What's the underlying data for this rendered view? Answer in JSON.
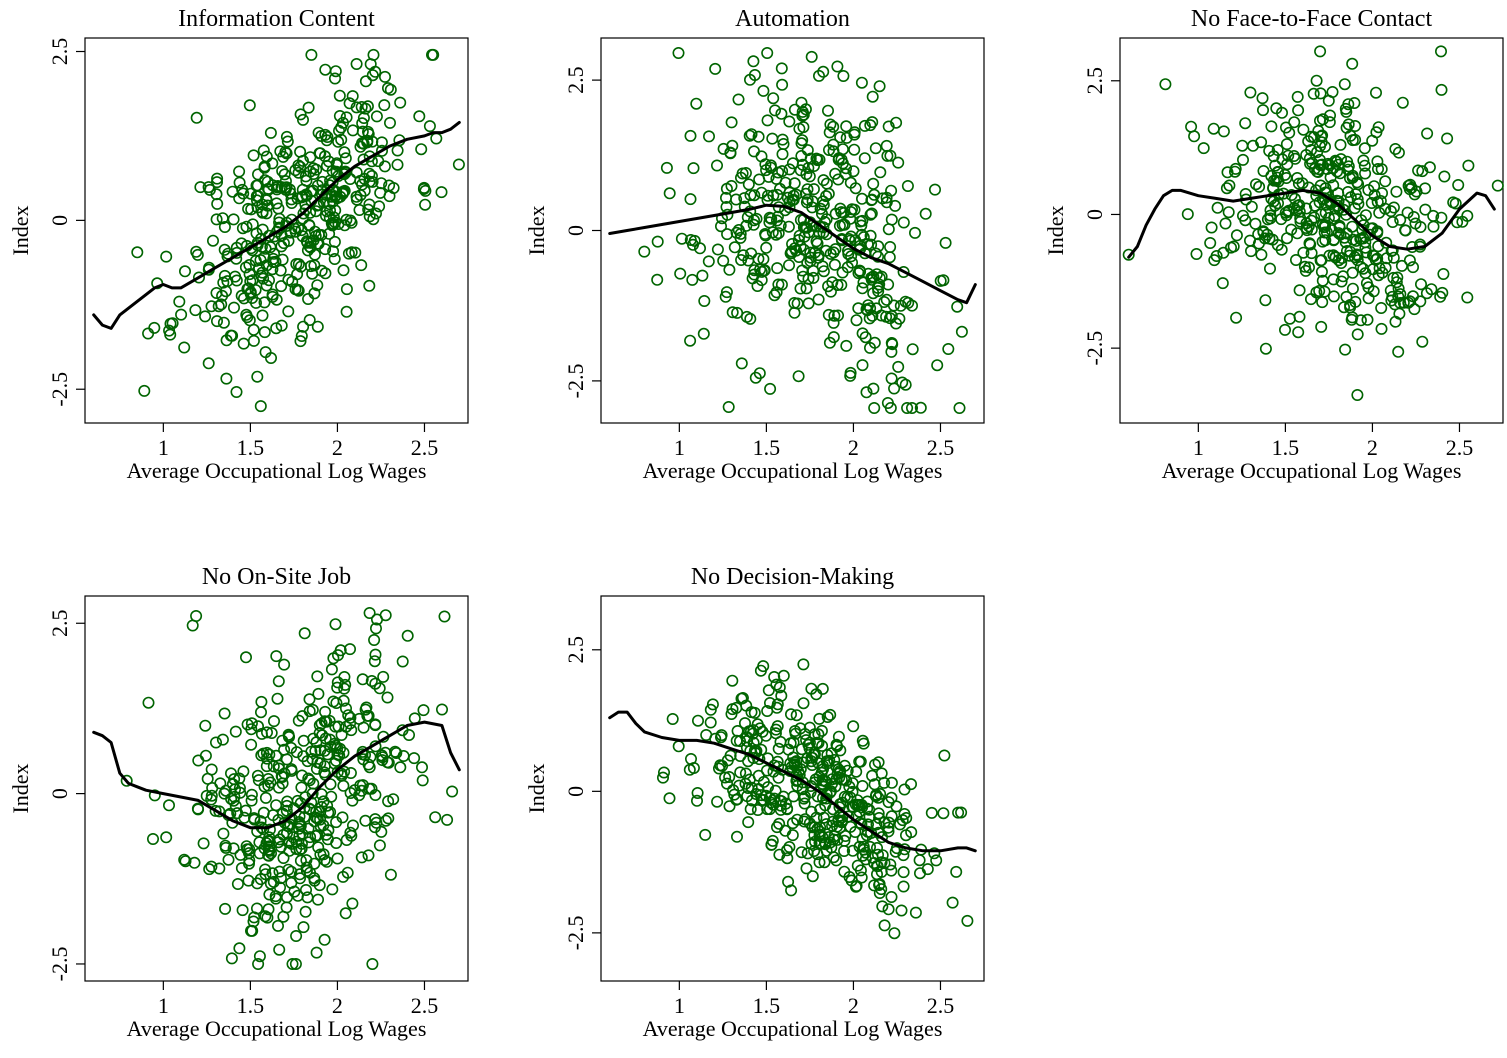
{
  "chart_data": [
    {
      "type": "scatter",
      "title": "Information Content",
      "xlabel": "Average Occupational Log Wages",
      "ylabel": "Index",
      "x_ticks": [
        "1",
        "1.5",
        "2",
        "2.5"
      ],
      "y_ticks": [
        "-2.5",
        "0",
        "2.5"
      ],
      "xlim": [
        0.55,
        2.75
      ],
      "ylim": [
        -3.0,
        2.7
      ],
      "point_color": "#006400",
      "point_count": 440,
      "generator": {
        "center_x": 1.78,
        "spread_x": 0.33,
        "slope": 1.55,
        "noise": 0.82,
        "seed": 11
      },
      "smooth": {
        "x": [
          0.6,
          0.65,
          0.7,
          0.75,
          0.8,
          0.85,
          0.9,
          0.95,
          1.0,
          1.05,
          1.1,
          1.2,
          1.3,
          1.4,
          1.5,
          1.6,
          1.7,
          1.8,
          1.9,
          2.0,
          2.1,
          2.2,
          2.3,
          2.4,
          2.5,
          2.55,
          2.6,
          2.65,
          2.7
        ],
        "y": [
          -1.4,
          -1.55,
          -1.6,
          -1.4,
          -1.3,
          -1.2,
          -1.1,
          -1.0,
          -0.95,
          -1.0,
          -1.0,
          -0.85,
          -0.7,
          -0.55,
          -0.4,
          -0.25,
          -0.1,
          0.1,
          0.35,
          0.6,
          0.8,
          0.95,
          1.1,
          1.2,
          1.25,
          1.3,
          1.3,
          1.35,
          1.45
        ]
      }
    },
    {
      "type": "scatter",
      "title": "Automation",
      "xlabel": "Average Occupational Log Wages",
      "ylabel": "Index",
      "x_ticks": [
        "1",
        "1.5",
        "2",
        "2.5"
      ],
      "y_ticks": [
        "-2.5",
        "0",
        "2.5"
      ],
      "xlim": [
        0.55,
        2.75
      ],
      "ylim": [
        -3.2,
        3.2
      ],
      "point_color": "#006400",
      "point_count": 440,
      "generator": {
        "center_x": 1.78,
        "spread_x": 0.33,
        "slope": -0.55,
        "noise": 1.15,
        "seed": 22
      },
      "smooth": {
        "x": [
          0.6,
          0.7,
          0.8,
          0.9,
          1.0,
          1.1,
          1.2,
          1.3,
          1.4,
          1.5,
          1.6,
          1.7,
          1.8,
          1.9,
          2.0,
          2.1,
          2.2,
          2.3,
          2.4,
          2.5,
          2.6,
          2.65,
          2.7
        ],
        "y": [
          -0.05,
          0.0,
          0.05,
          0.1,
          0.15,
          0.2,
          0.25,
          0.3,
          0.35,
          0.42,
          0.4,
          0.3,
          0.1,
          -0.1,
          -0.3,
          -0.45,
          -0.55,
          -0.7,
          -0.85,
          -1.0,
          -1.15,
          -1.2,
          -0.9
        ]
      }
    },
    {
      "type": "scatter",
      "title": "No Face-to-Face Contact",
      "xlabel": "Average Occupational Log Wages",
      "ylabel": "Index",
      "x_ticks": [
        "1",
        "1.5",
        "2",
        "2.5"
      ],
      "y_ticks": [
        "-2.5",
        "0",
        "2.5"
      ],
      "xlim": [
        0.55,
        2.75
      ],
      "ylim": [
        -3.9,
        3.3
      ],
      "point_color": "#006400",
      "point_count": 440,
      "generator": {
        "center_x": 1.78,
        "spread_x": 0.33,
        "slope": -0.2,
        "noise": 1.05,
        "seed": 33
      },
      "smooth": {
        "x": [
          0.6,
          0.65,
          0.7,
          0.75,
          0.8,
          0.85,
          0.9,
          1.0,
          1.1,
          1.2,
          1.3,
          1.4,
          1.5,
          1.6,
          1.7,
          1.8,
          1.9,
          2.0,
          2.1,
          2.2,
          2.3,
          2.4,
          2.5,
          2.6,
          2.65,
          2.7
        ],
        "y": [
          -0.8,
          -0.6,
          -0.2,
          0.1,
          0.35,
          0.45,
          0.45,
          0.35,
          0.3,
          0.25,
          0.3,
          0.35,
          0.4,
          0.45,
          0.4,
          0.2,
          -0.1,
          -0.4,
          -0.6,
          -0.65,
          -0.6,
          -0.35,
          0.1,
          0.4,
          0.35,
          0.1
        ]
      }
    },
    {
      "type": "scatter",
      "title": "No On-Site Job",
      "xlabel": "Average Occupational Log Wages",
      "ylabel": "Index",
      "x_ticks": [
        "1",
        "1.5",
        "2",
        "2.5"
      ],
      "y_ticks": [
        "-2.5",
        "0",
        "2.5"
      ],
      "xlim": [
        0.55,
        2.75
      ],
      "ylim": [
        -2.75,
        2.9
      ],
      "point_color": "#006400",
      "point_count": 440,
      "generator": {
        "center_x": 1.78,
        "spread_x": 0.33,
        "slope": 0.45,
        "noise": 1.05,
        "seed": 44
      },
      "smooth": {
        "x": [
          0.6,
          0.65,
          0.7,
          0.75,
          0.8,
          0.85,
          0.9,
          1.0,
          1.1,
          1.2,
          1.3,
          1.4,
          1.5,
          1.6,
          1.7,
          1.8,
          1.9,
          2.0,
          2.1,
          2.2,
          2.3,
          2.4,
          2.5,
          2.6,
          2.65,
          2.7
        ],
        "y": [
          0.9,
          0.85,
          0.75,
          0.3,
          0.15,
          0.1,
          0.05,
          0.0,
          -0.05,
          -0.1,
          -0.25,
          -0.4,
          -0.5,
          -0.5,
          -0.4,
          -0.2,
          0.1,
          0.35,
          0.55,
          0.7,
          0.85,
          1.0,
          1.05,
          1.0,
          0.6,
          0.35
        ]
      }
    },
    {
      "type": "scatter",
      "title": "No Decision-Making",
      "xlabel": "Average Occupational Log Wages",
      "ylabel": "Index",
      "x_ticks": [
        "1",
        "1.5",
        "2",
        "2.5"
      ],
      "y_ticks": [
        "-2.5",
        "0",
        "2.5"
      ],
      "xlim": [
        0.55,
        2.75
      ],
      "ylim": [
        -3.35,
        3.45
      ],
      "point_color": "#006400",
      "point_count": 440,
      "generator": {
        "center_x": 1.78,
        "spread_x": 0.33,
        "slope": -1.45,
        "noise": 0.72,
        "seed": 55
      },
      "smooth": {
        "x": [
          0.6,
          0.65,
          0.7,
          0.75,
          0.8,
          0.9,
          1.0,
          1.1,
          1.2,
          1.3,
          1.4,
          1.5,
          1.6,
          1.7,
          1.8,
          1.9,
          2.0,
          2.1,
          2.2,
          2.3,
          2.4,
          2.5,
          2.6,
          2.65,
          2.7
        ],
        "y": [
          1.3,
          1.4,
          1.4,
          1.2,
          1.05,
          0.95,
          0.9,
          0.9,
          0.85,
          0.75,
          0.65,
          0.5,
          0.35,
          0.2,
          0.0,
          -0.25,
          -0.5,
          -0.7,
          -0.9,
          -1.0,
          -1.05,
          -1.05,
          -1.0,
          -1.0,
          -1.05
        ]
      }
    }
  ]
}
